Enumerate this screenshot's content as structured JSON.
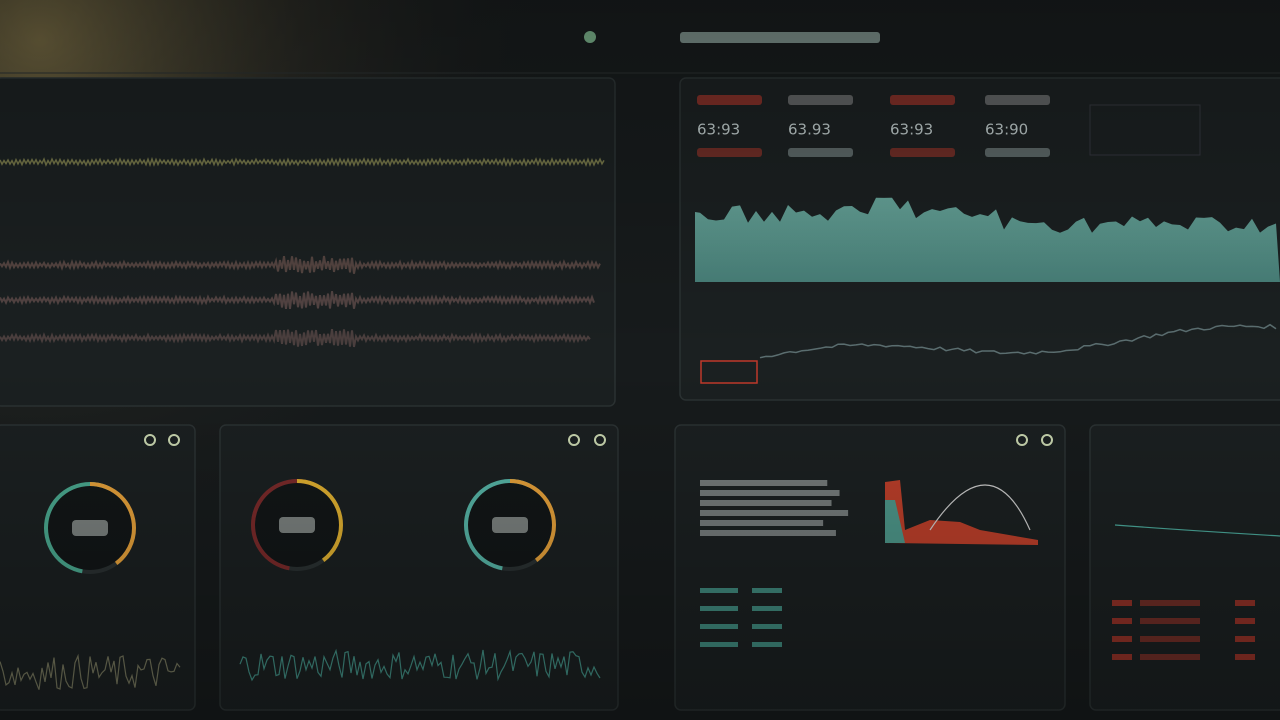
{
  "readouts": [
    "63:93",
    "63.93",
    "63:93",
    "63:90"
  ]
}
